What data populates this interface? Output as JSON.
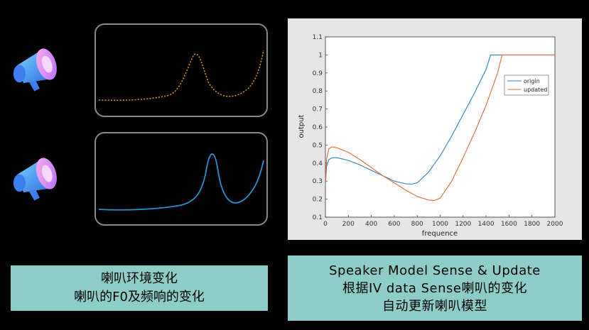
{
  "left_caption": {
    "line1": "喇叭环境变化",
    "line2": "喇叭的F0及频响的变化"
  },
  "right_caption": {
    "line1": "Speaker Model Sense & Update",
    "line2": "根据IV data Sense喇叭的变化",
    "line3": "自动更新喇叭模型"
  },
  "colors": {
    "top_curve": "#c98a2a",
    "bottom_curve": "#2a8fd0",
    "origin": "#2f7fc1",
    "updated": "#e0693a",
    "caption_bg": "#8dcdc8"
  },
  "icons": [
    "megaphone-icon",
    "megaphone-icon"
  ],
  "chart_data": {
    "type": "line",
    "xlabel": "frequence",
    "ylabel": "output",
    "xlim": [
      0,
      2000
    ],
    "ylim": [
      0.1,
      1.1
    ],
    "xticks": [
      0,
      200,
      400,
      600,
      800,
      1000,
      1200,
      1400,
      1600,
      1800,
      2000
    ],
    "yticks": [
      0.1,
      0.2,
      0.3,
      0.4,
      0.5,
      0.6,
      0.7,
      0.8,
      0.9,
      1,
      1.1
    ],
    "legend_position": "upper-right",
    "series": [
      {
        "name": "origin",
        "x": [
          0,
          10,
          30,
          60,
          100,
          200,
          300,
          400,
          500,
          600,
          700,
          750,
          800,
          900,
          1000,
          1100,
          1200,
          1300,
          1400,
          1440,
          1600,
          1800,
          2000
        ],
        "y": [
          0.28,
          0.38,
          0.42,
          0.43,
          0.43,
          0.415,
          0.39,
          0.36,
          0.33,
          0.3,
          0.285,
          0.283,
          0.29,
          0.35,
          0.44,
          0.55,
          0.67,
          0.79,
          0.92,
          1.0,
          1.0,
          1.0,
          1.0
        ]
      },
      {
        "name": "updated",
        "x": [
          0,
          10,
          30,
          60,
          100,
          200,
          300,
          400,
          500,
          600,
          700,
          800,
          900,
          950,
          1000,
          1100,
          1200,
          1300,
          1400,
          1500,
          1540,
          1600,
          1800,
          2000
        ],
        "y": [
          0.3,
          0.42,
          0.48,
          0.49,
          0.485,
          0.46,
          0.42,
          0.375,
          0.33,
          0.29,
          0.25,
          0.215,
          0.195,
          0.193,
          0.205,
          0.3,
          0.43,
          0.57,
          0.72,
          0.9,
          1.0,
          1.0,
          1.0,
          1.0
        ]
      }
    ]
  }
}
